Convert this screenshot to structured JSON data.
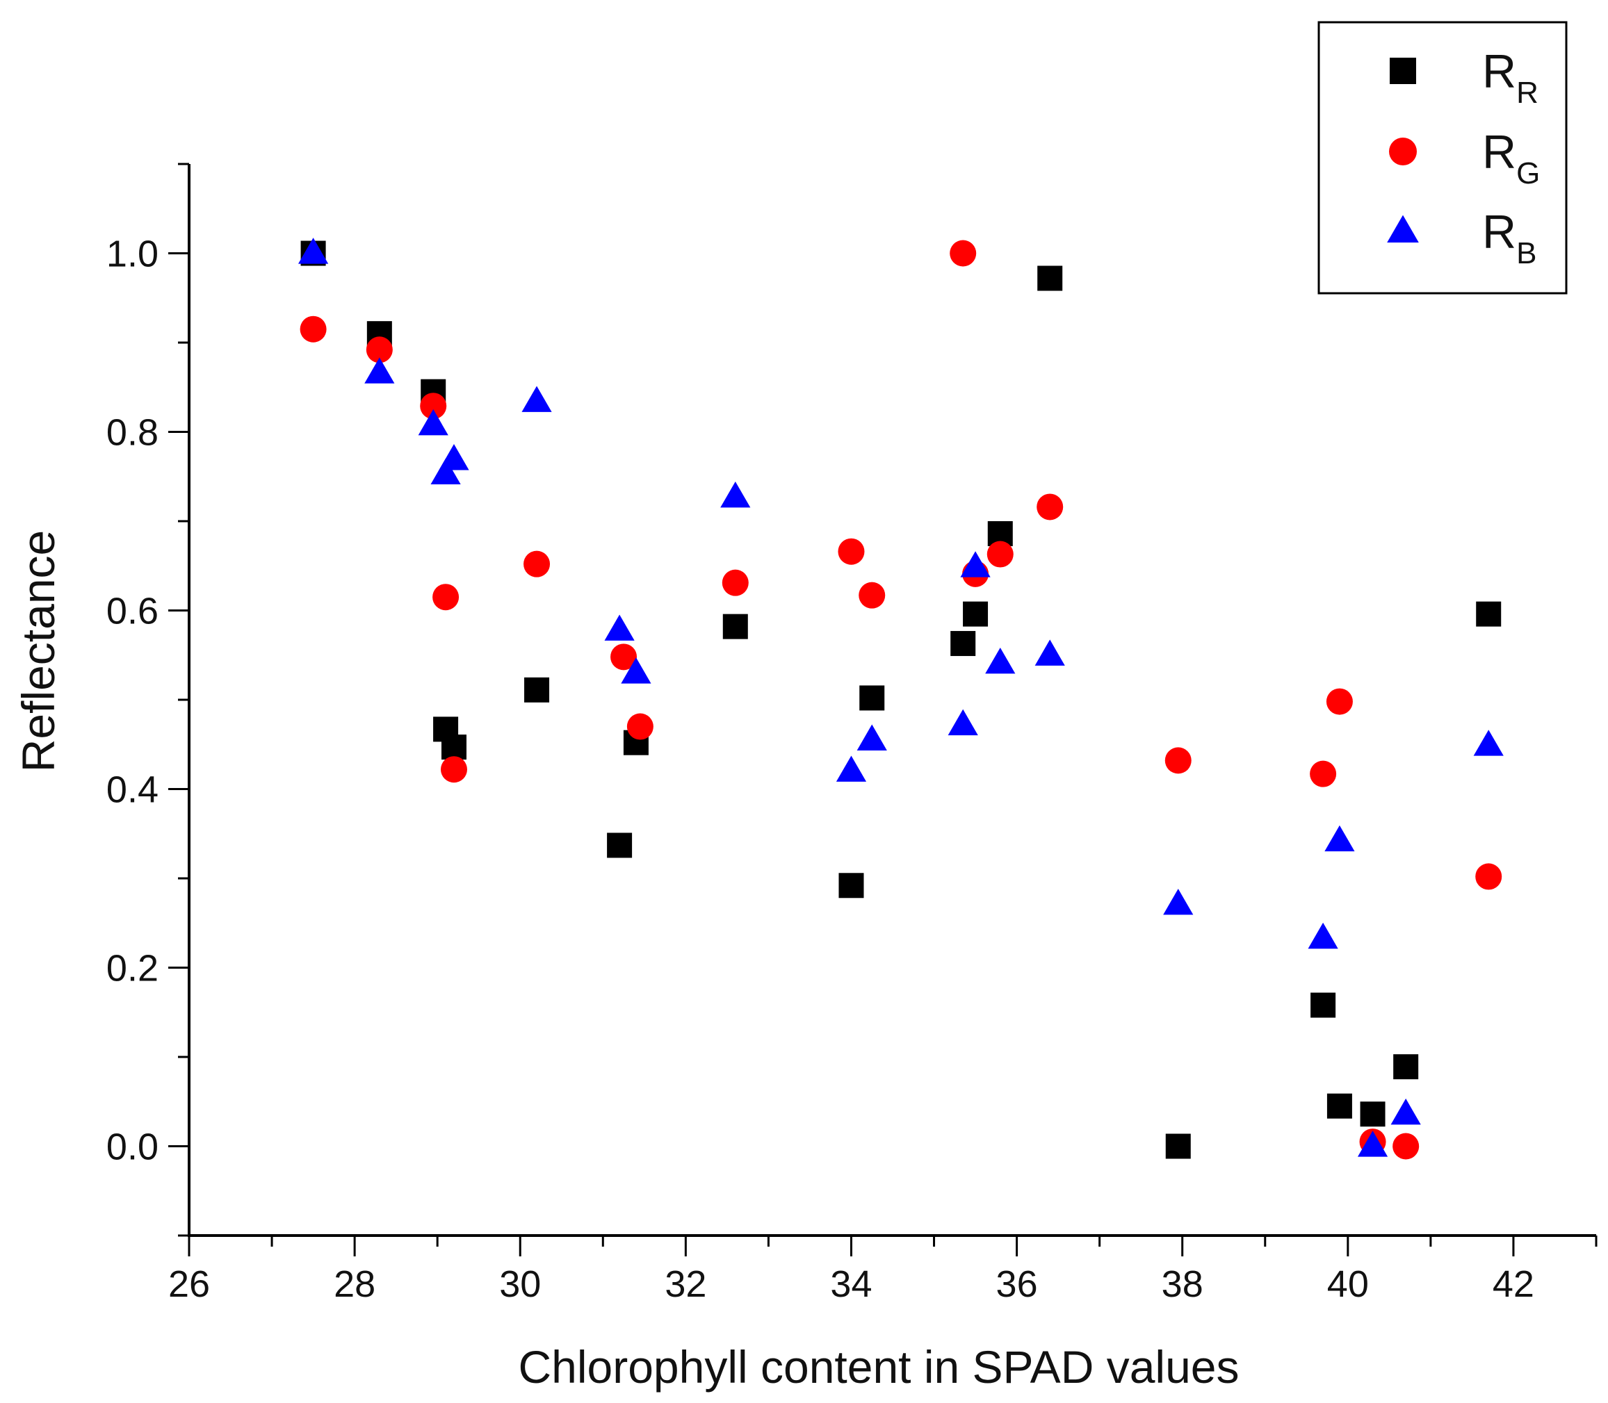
{
  "chart_data": {
    "type": "scatter",
    "title": "",
    "xlabel": "Chlorophyll content in SPAD values",
    "ylabel": "Reflectance",
    "xlim": [
      26,
      43
    ],
    "ylim": [
      -0.1,
      1.1
    ],
    "xticks": [
      "26",
      "28",
      "30",
      "32",
      "34",
      "36",
      "38",
      "40",
      "42"
    ],
    "yticks": [
      "0.0",
      "0.2",
      "0.4",
      "0.6",
      "0.8",
      "1.0"
    ],
    "grid": false,
    "legend_position": "top-right",
    "series": [
      {
        "name": "R",
        "subscript": "R",
        "marker": "square",
        "color": "#000000",
        "points": [
          [
            27.5,
            1.0
          ],
          [
            28.3,
            0.91
          ],
          [
            28.95,
            0.845
          ],
          [
            29.1,
            0.467
          ],
          [
            29.2,
            0.447
          ],
          [
            30.2,
            0.511
          ],
          [
            31.2,
            0.337
          ],
          [
            31.4,
            0.452
          ],
          [
            32.6,
            0.582
          ],
          [
            34.0,
            0.292
          ],
          [
            34.25,
            0.502
          ],
          [
            35.35,
            0.563
          ],
          [
            35.5,
            0.596
          ],
          [
            35.8,
            0.686
          ],
          [
            36.4,
            0.972
          ],
          [
            37.95,
            0.0
          ],
          [
            39.7,
            0.158
          ],
          [
            39.9,
            0.045
          ],
          [
            40.3,
            0.036
          ],
          [
            40.7,
            0.089
          ],
          [
            41.7,
            0.596
          ]
        ]
      },
      {
        "name": "R",
        "subscript": "G",
        "marker": "circle",
        "color": "#ff0000",
        "points": [
          [
            27.5,
            0.915
          ],
          [
            28.3,
            0.892
          ],
          [
            28.95,
            0.829
          ],
          [
            29.1,
            0.615
          ],
          [
            29.2,
            0.422
          ],
          [
            30.2,
            0.652
          ],
          [
            31.25,
            0.548
          ],
          [
            31.45,
            0.47
          ],
          [
            32.6,
            0.631
          ],
          [
            34.0,
            0.666
          ],
          [
            34.25,
            0.617
          ],
          [
            35.35,
            1.0
          ],
          [
            35.5,
            0.641
          ],
          [
            35.8,
            0.663
          ],
          [
            36.4,
            0.716
          ],
          [
            37.95,
            0.432
          ],
          [
            39.7,
            0.417
          ],
          [
            39.9,
            0.498
          ],
          [
            40.3,
            0.005
          ],
          [
            40.7,
            0.0
          ],
          [
            41.7,
            0.302
          ]
        ]
      },
      {
        "name": "R",
        "subscript": "B",
        "marker": "triangle",
        "color": "#0000ff",
        "points": [
          [
            27.5,
            1.0
          ],
          [
            28.3,
            0.866
          ],
          [
            28.95,
            0.808
          ],
          [
            29.1,
            0.753
          ],
          [
            29.2,
            0.769
          ],
          [
            30.2,
            0.834
          ],
          [
            31.2,
            0.578
          ],
          [
            31.4,
            0.53
          ],
          [
            32.6,
            0.727
          ],
          [
            34.0,
            0.42
          ],
          [
            34.25,
            0.455
          ],
          [
            35.35,
            0.472
          ],
          [
            35.5,
            0.649
          ],
          [
            35.8,
            0.541
          ],
          [
            36.4,
            0.55
          ],
          [
            37.95,
            0.271
          ],
          [
            39.7,
            0.233
          ],
          [
            39.9,
            0.342
          ],
          [
            40.3,
            0.0
          ],
          [
            40.7,
            0.036
          ],
          [
            41.7,
            0.449
          ]
        ]
      }
    ]
  }
}
